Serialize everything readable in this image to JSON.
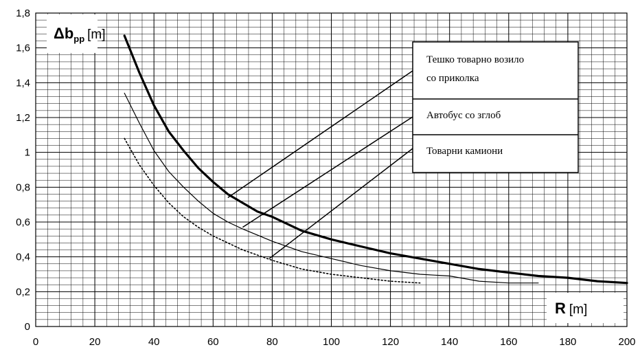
{
  "chart_data": {
    "type": "line",
    "xlabel": {
      "main": "R",
      "unit": "[m]"
    },
    "ylabel": {
      "main": "Δb",
      "sub": "pp",
      "unit": "[m]"
    },
    "xlim": [
      0,
      200
    ],
    "ylim": [
      0,
      1.8
    ],
    "x_ticks": [
      "0",
      "20",
      "40",
      "60",
      "80",
      "100",
      "120",
      "140",
      "160",
      "180",
      "200"
    ],
    "y_ticks": [
      "0",
      "0,2",
      "0,4",
      "0,6",
      "0,8",
      "1",
      "1,2",
      "1,4",
      "1,6",
      "1,8"
    ],
    "grid": true,
    "minor_grid": {
      "x_step": 4,
      "y_step": 0.04
    },
    "series": [
      {
        "name": "Тешко товарно возило со приколка",
        "style": "thick",
        "x": [
          30,
          35,
          40,
          45,
          50,
          55,
          60,
          65,
          70,
          75,
          80,
          90,
          100,
          110,
          120,
          130,
          140,
          150,
          160,
          170,
          180,
          190,
          200
        ],
        "y": [
          1.67,
          1.46,
          1.27,
          1.12,
          1.01,
          0.91,
          0.83,
          0.76,
          0.71,
          0.66,
          0.63,
          0.55,
          0.5,
          0.46,
          0.42,
          0.39,
          0.36,
          0.33,
          0.31,
          0.29,
          0.28,
          0.26,
          0.25
        ]
      },
      {
        "name": "Автобус со зглоб",
        "style": "thin",
        "x": [
          30,
          35,
          40,
          45,
          50,
          55,
          60,
          65,
          70,
          80,
          90,
          100,
          110,
          120,
          130,
          140,
          150,
          160,
          170
        ],
        "y": [
          1.34,
          1.17,
          1.01,
          0.89,
          0.8,
          0.72,
          0.65,
          0.6,
          0.56,
          0.49,
          0.43,
          0.39,
          0.35,
          0.32,
          0.3,
          0.29,
          0.26,
          0.25,
          0.25
        ]
      },
      {
        "name": "Товарни камиони",
        "style": "dotted",
        "x": [
          30,
          35,
          40,
          45,
          50,
          55,
          60,
          65,
          70,
          80,
          90,
          100,
          110,
          120,
          130
        ],
        "y": [
          1.08,
          0.93,
          0.81,
          0.71,
          0.63,
          0.57,
          0.52,
          0.48,
          0.44,
          0.38,
          0.33,
          0.3,
          0.28,
          0.26,
          0.25
        ]
      }
    ],
    "legend": {
      "placement": "top-right",
      "entries": [
        {
          "lines": [
            "Тешко товарно возило",
            "со приколка"
          ],
          "leader_to": {
            "x": 65,
            "y": 0.74
          }
        },
        {
          "lines": [
            "Автобус со зглоб"
          ],
          "leader_to": {
            "x": 70,
            "y": 0.57
          }
        },
        {
          "lines": [
            "Товарни камиони"
          ],
          "leader_to": {
            "x": 79,
            "y": 0.39
          }
        }
      ]
    }
  }
}
